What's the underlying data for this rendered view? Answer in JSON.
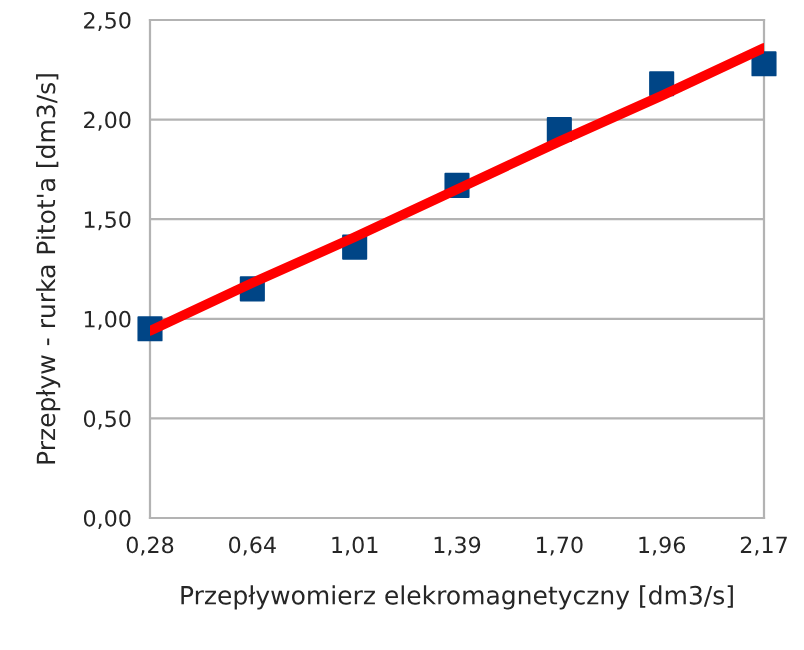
{
  "chart_data": {
    "type": "scatter",
    "xlabel": "Przepływomierz elekromagnetyczny [dm3/s]",
    "ylabel": "Przepływ - rurka Pitot'a [dm3/s]",
    "categories": [
      "0,28",
      "0,64",
      "1,01",
      "1,39",
      "1,70",
      "1,96",
      "2,17"
    ],
    "series": [
      {
        "color": "#004586",
        "marker": "square",
        "values": [
          0.95,
          1.15,
          1.36,
          1.67,
          1.95,
          2.18,
          2.28
        ]
      },
      {
        "type": "line",
        "color": "#ff0000",
        "marker": "none",
        "line_style": "solid",
        "values": [
          0.94,
          1.18,
          1.41,
          1.65,
          1.89,
          2.12,
          2.36
        ]
      }
    ],
    "ylim": [
      0,
      2.5
    ],
    "yticks": [
      {
        "value": 0,
        "label": "0,00"
      },
      {
        "value": 0.5,
        "label": "0,50"
      },
      {
        "value": 1,
        "label": "1,00"
      },
      {
        "value": 1.5,
        "label": "1,50"
      },
      {
        "value": 2,
        "label": "2,00"
      },
      {
        "value": 2.5,
        "label": "2,50"
      }
    ],
    "grid": "y",
    "legend": false
  }
}
